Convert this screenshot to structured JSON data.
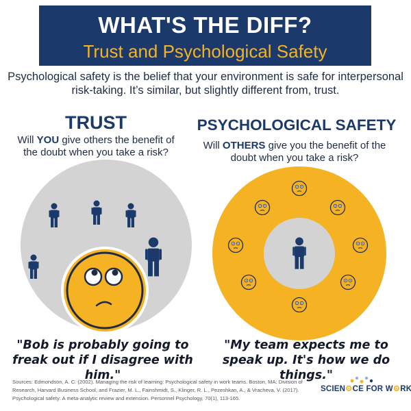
{
  "header": {
    "title": "WHAT'S THE DIFF?",
    "subtitle": "Trust and Psychological Safety"
  },
  "intro": "Psychological safety is the belief that your environment is safe for interpersonal risk-taking. It’s similar, but slightly different from, trust.",
  "trust": {
    "heading": "TRUST",
    "question": {
      "before": "Will ",
      "emphasis": "YOU",
      "after": " give others the benefit of the doubt when you take a risk?"
    },
    "quote": "\"Bob is probably going to freak out if I disagree with him.\""
  },
  "psychological_safety": {
    "heading": "PSYCHOLOGICAL SAFETY",
    "question": {
      "before": "Will ",
      "emphasis": "OTHERS",
      "after": " give you the benefit of the doubt when you take a risk?"
    },
    "quote": "\"My team expects me to speak up. It's how we do things.\""
  },
  "sources": "Sources: Edmondson, A. C. (2002). Managing the risk of learning: Psychological safety in work teams. Boston, MA: Division of Research, Harvard Business School, and Frazier, M. L., Fainshmidt, S., Klinger, R. L., Pezeshkan, A., & Vracheva, V. (2017). Psychological safety: A meta-analytic review and extension. Personnel Psychology, 70(1), 113-165.",
  "logo": {
    "part1": "SCIEN",
    "part2": "CE FOR W",
    "part3": "RK"
  },
  "colors": {
    "navy": "#1b3a6b",
    "accent": "#f5b223",
    "gray": "#d3d3d3"
  }
}
